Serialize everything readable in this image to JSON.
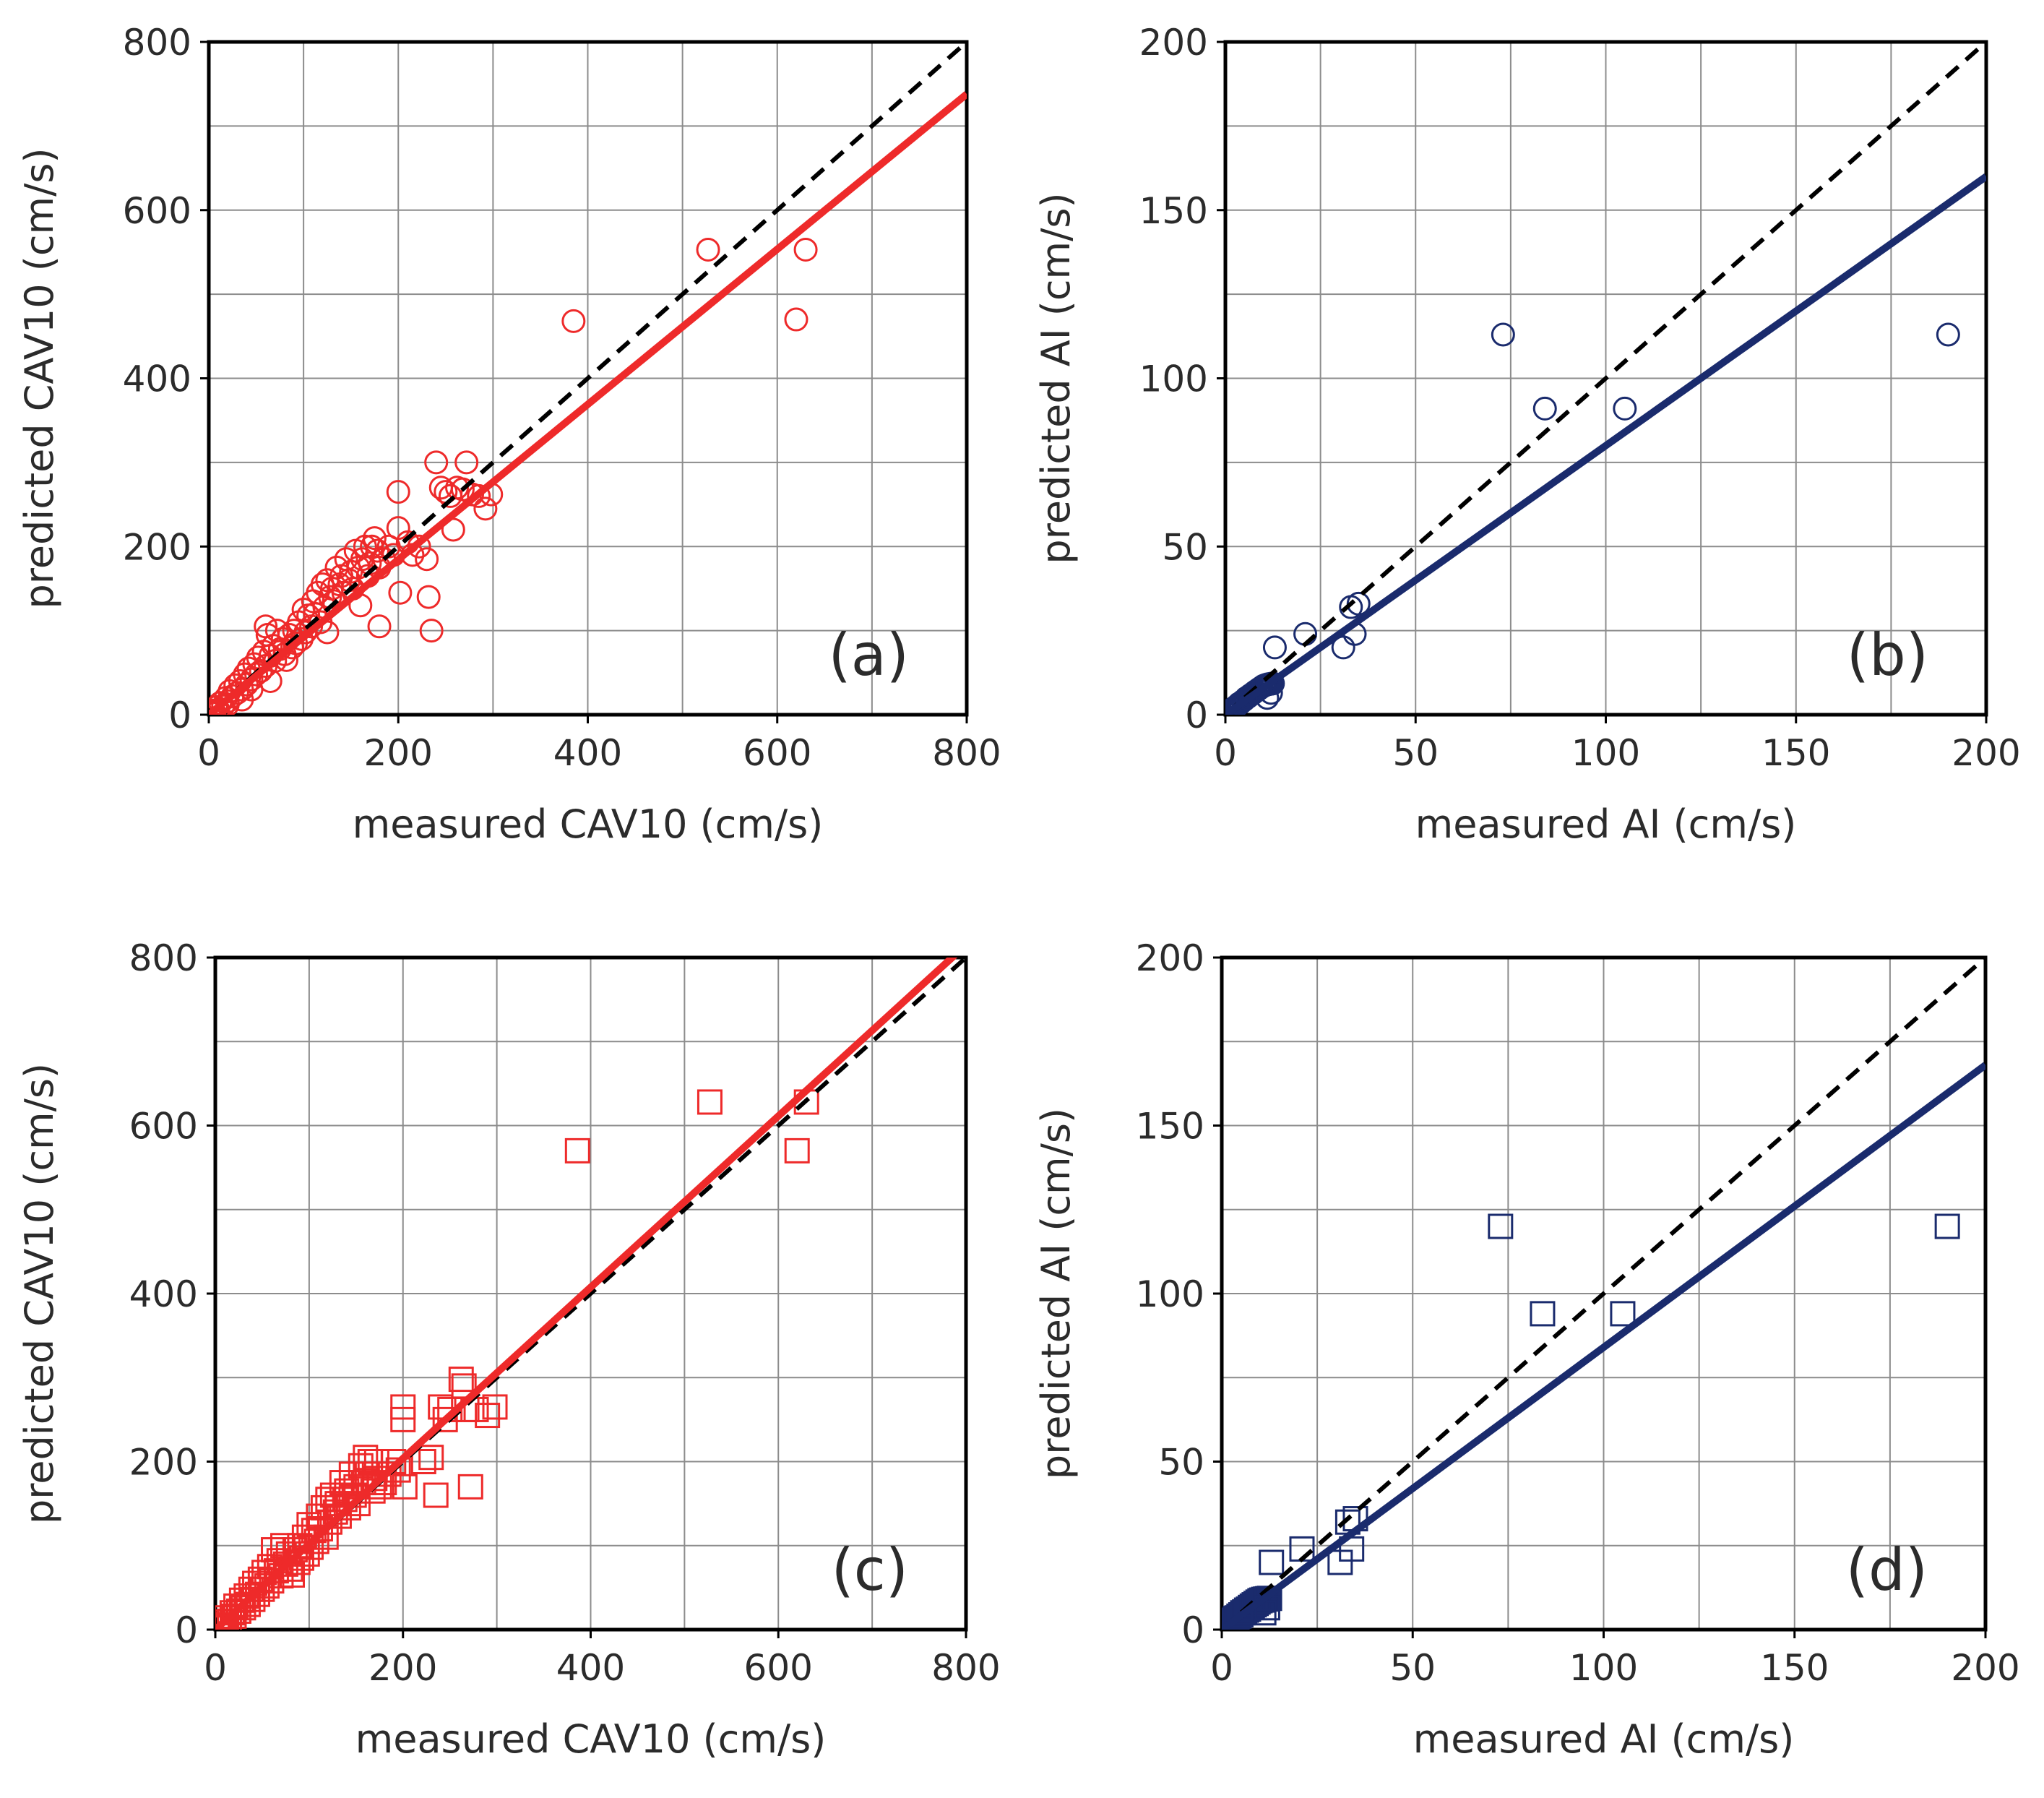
{
  "chart_data": [
    {
      "panel_id": "a",
      "type": "scatter",
      "marker": "circle",
      "color": "#ee2a2a",
      "panel_label": "(a)",
      "xlabel": "measured CAV10 (cm/s)",
      "ylabel": "predicted CAV10 (cm/s)",
      "xlim": [
        0,
        800
      ],
      "ylim": [
        0,
        800
      ],
      "xticks": [
        0,
        200,
        400,
        600,
        800
      ],
      "yticks": [
        0,
        200,
        400,
        600,
        800
      ],
      "xtick_labels": [
        "0",
        "200",
        "400",
        "600",
        "800"
      ],
      "ytick_labels": [
        "0",
        "200",
        "400",
        "600",
        "800"
      ],
      "grid_step": 100,
      "grid": true,
      "identity_line": true,
      "fit_line": {
        "x": [
          0,
          800
        ],
        "y": [
          0,
          738
        ],
        "color": "#ee2a2a"
      },
      "points": [
        [
          2,
          2
        ],
        [
          4,
          5
        ],
        [
          6,
          3
        ],
        [
          8,
          9
        ],
        [
          10,
          6
        ],
        [
          12,
          14
        ],
        [
          15,
          10
        ],
        [
          18,
          20
        ],
        [
          20,
          16
        ],
        [
          22,
          28
        ],
        [
          25,
          22
        ],
        [
          28,
          35
        ],
        [
          30,
          26
        ],
        [
          33,
          40
        ],
        [
          35,
          30
        ],
        [
          38,
          48
        ],
        [
          40,
          36
        ],
        [
          42,
          55
        ],
        [
          45,
          42
        ],
        [
          48,
          60
        ],
        [
          50,
          48
        ],
        [
          52,
          68
        ],
        [
          55,
          52
        ],
        [
          58,
          75
        ],
        [
          60,
          58
        ],
        [
          62,
          95
        ],
        [
          65,
          70
        ],
        [
          68,
          82
        ],
        [
          70,
          64
        ],
        [
          72,
          100
        ],
        [
          75,
          78
        ],
        [
          78,
          90
        ],
        [
          80,
          72
        ],
        [
          82,
          65
        ],
        [
          85,
          95
        ],
        [
          88,
          80
        ],
        [
          90,
          100
        ],
        [
          92,
          85
        ],
        [
          95,
          110
        ],
        [
          98,
          90
        ],
        [
          100,
          125
        ],
        [
          102,
          98
        ],
        [
          105,
          118
        ],
        [
          108,
          105
        ],
        [
          110,
          135
        ],
        [
          112,
          120
        ],
        [
          115,
          145
        ],
        [
          118,
          110
        ],
        [
          120,
          155
        ],
        [
          122,
          128
        ],
        [
          125,
          160
        ],
        [
          128,
          140
        ],
        [
          130,
          150
        ],
        [
          132,
          135
        ],
        [
          135,
          175
        ],
        [
          138,
          155
        ],
        [
          140,
          165
        ],
        [
          142,
          145
        ],
        [
          145,
          185
        ],
        [
          148,
          160
        ],
        [
          150,
          170
        ],
        [
          152,
          150
        ],
        [
          155,
          195
        ],
        [
          158,
          175
        ],
        [
          160,
          130
        ],
        [
          162,
          185
        ],
        [
          165,
          200
        ],
        [
          168,
          165
        ],
        [
          170,
          180
        ],
        [
          172,
          200
        ],
        [
          175,
          210
        ],
        [
          178,
          195
        ],
        [
          180,
          175
        ],
        [
          185,
          185
        ],
        [
          190,
          200
        ],
        [
          195,
          190
        ],
        [
          200,
          265
        ],
        [
          200,
          222
        ],
        [
          202,
          145
        ],
        [
          210,
          205
        ],
        [
          215,
          190
        ],
        [
          222,
          200
        ],
        [
          230,
          185
        ],
        [
          232,
          140
        ],
        [
          235,
          100
        ],
        [
          240,
          300
        ],
        [
          245,
          270
        ],
        [
          250,
          265
        ],
        [
          255,
          260
        ],
        [
          258,
          220
        ],
        [
          262,
          270
        ],
        [
          268,
          268
        ],
        [
          272,
          300
        ],
        [
          278,
          262
        ],
        [
          285,
          260
        ],
        [
          292,
          245
        ],
        [
          298,
          262
        ],
        [
          180,
          105
        ],
        [
          125,
          98
        ],
        [
          60,
          105
        ],
        [
          20,
          12
        ],
        [
          10,
          4
        ],
        [
          45,
          30
        ],
        [
          65,
          40
        ],
        [
          35,
          18
        ],
        [
          385,
          468
        ],
        [
          527,
          553
        ],
        [
          620,
          470
        ],
        [
          630,
          553
        ]
      ]
    },
    {
      "panel_id": "b",
      "type": "scatter",
      "marker": "circle",
      "color": "#1a2b6d",
      "panel_label": "(b)",
      "xlabel": "measured AI (cm/s)",
      "ylabel": "predicted  AI (cm/s)",
      "xlim": [
        0,
        200
      ],
      "ylim": [
        0,
        200
      ],
      "xticks": [
        0,
        50,
        100,
        150,
        200
      ],
      "yticks": [
        0,
        50,
        100,
        150,
        200
      ],
      "xtick_labels": [
        "0",
        "50",
        "100",
        "150",
        "200"
      ],
      "ytick_labels": [
        "0",
        "50",
        "100",
        "150",
        "200"
      ],
      "grid_step": 25,
      "grid": true,
      "identity_line": true,
      "fit_line": {
        "x": [
          0,
          200
        ],
        "y": [
          0,
          160
        ],
        "color": "#1a2b6d"
      },
      "points": [
        [
          0.3,
          0.2
        ],
        [
          0.6,
          0.5
        ],
        [
          1,
          0.8
        ],
        [
          1.3,
          1.1
        ],
        [
          1.6,
          1.2
        ],
        [
          2,
          1.8
        ],
        [
          2.4,
          2
        ],
        [
          2.8,
          2.5
        ],
        [
          3.2,
          2.8
        ],
        [
          3.6,
          3.3
        ],
        [
          4,
          3.5
        ],
        [
          4.5,
          4
        ],
        [
          5,
          4.4
        ],
        [
          5.5,
          5
        ],
        [
          6,
          5.3
        ],
        [
          6.5,
          5.8
        ],
        [
          7,
          6.1
        ],
        [
          7.5,
          6.6
        ],
        [
          8,
          7
        ],
        [
          8.5,
          7.4
        ],
        [
          9,
          7.8
        ],
        [
          9.5,
          8.2
        ],
        [
          10,
          8.6
        ],
        [
          10.5,
          8.8
        ],
        [
          11,
          9
        ],
        [
          11.5,
          9.1
        ],
        [
          12,
          9.2
        ],
        [
          12.5,
          9.3
        ],
        [
          11,
          5
        ],
        [
          12,
          6.5
        ],
        [
          13,
          20
        ],
        [
          21,
          24
        ],
        [
          31,
          20
        ],
        [
          33,
          32
        ],
        [
          34,
          24
        ],
        [
          35,
          33
        ],
        [
          73,
          113
        ],
        [
          84,
          91
        ],
        [
          105,
          91
        ],
        [
          190,
          113
        ]
      ]
    },
    {
      "panel_id": "c",
      "type": "scatter",
      "marker": "square",
      "color": "#ee2a2a",
      "panel_label": "(c)",
      "xlabel": "measured CAV10 (cm/s)",
      "ylabel": "predicted CAV10 (cm/s)",
      "xlim": [
        0,
        800
      ],
      "ylim": [
        0,
        800
      ],
      "xticks": [
        0,
        200,
        400,
        600,
        800
      ],
      "yticks": [
        0,
        200,
        400,
        600,
        800
      ],
      "xtick_labels": [
        "0",
        "200",
        "400",
        "600",
        "800"
      ],
      "ytick_labels": [
        "0",
        "200",
        "400",
        "600",
        "800"
      ],
      "grid_step": 100,
      "grid": true,
      "identity_line": true,
      "fit_line": {
        "x": [
          0,
          800
        ],
        "y": [
          0,
          815
        ],
        "color": "#ee2a2a"
      },
      "points": [
        [
          2,
          2
        ],
        [
          4,
          5
        ],
        [
          6,
          3
        ],
        [
          8,
          9
        ],
        [
          10,
          6
        ],
        [
          12,
          14
        ],
        [
          15,
          10
        ],
        [
          18,
          20
        ],
        [
          20,
          16
        ],
        [
          22,
          28
        ],
        [
          25,
          22
        ],
        [
          28,
          35
        ],
        [
          30,
          26
        ],
        [
          33,
          40
        ],
        [
          35,
          30
        ],
        [
          38,
          48
        ],
        [
          40,
          36
        ],
        [
          42,
          55
        ],
        [
          45,
          42
        ],
        [
          48,
          60
        ],
        [
          50,
          48
        ],
        [
          52,
          68
        ],
        [
          55,
          52
        ],
        [
          58,
          75
        ],
        [
          60,
          58
        ],
        [
          62,
          95
        ],
        [
          65,
          70
        ],
        [
          68,
          82
        ],
        [
          70,
          64
        ],
        [
          72,
          100
        ],
        [
          75,
          78
        ],
        [
          78,
          90
        ],
        [
          80,
          72
        ],
        [
          82,
          65
        ],
        [
          85,
          95
        ],
        [
          88,
          80
        ],
        [
          90,
          100
        ],
        [
          92,
          85
        ],
        [
          95,
          110
        ],
        [
          98,
          90
        ],
        [
          100,
          125
        ],
        [
          102,
          98
        ],
        [
          105,
          118
        ],
        [
          108,
          105
        ],
        [
          110,
          135
        ],
        [
          112,
          120
        ],
        [
          115,
          145
        ],
        [
          118,
          110
        ],
        [
          120,
          155
        ],
        [
          122,
          128
        ],
        [
          125,
          160
        ],
        [
          128,
          140
        ],
        [
          130,
          150
        ],
        [
          132,
          135
        ],
        [
          135,
          175
        ],
        [
          138,
          155
        ],
        [
          140,
          165
        ],
        [
          142,
          145
        ],
        [
          145,
          185
        ],
        [
          148,
          160
        ],
        [
          150,
          170
        ],
        [
          152,
          150
        ],
        [
          155,
          195
        ],
        [
          158,
          175
        ],
        [
          160,
          205
        ],
        [
          162,
          185
        ],
        [
          165,
          200
        ],
        [
          168,
          165
        ],
        [
          170,
          180
        ],
        [
          172,
          200
        ],
        [
          175,
          170
        ],
        [
          180,
          175
        ],
        [
          185,
          185
        ],
        [
          190,
          200
        ],
        [
          195,
          190
        ],
        [
          200,
          265
        ],
        [
          200,
          250
        ],
        [
          202,
          170
        ],
        [
          222,
          200
        ],
        [
          230,
          205
        ],
        [
          235,
          160
        ],
        [
          240,
          265
        ],
        [
          245,
          250
        ],
        [
          250,
          262
        ],
        [
          262,
          298
        ],
        [
          265,
          290
        ],
        [
          268,
          262
        ],
        [
          272,
          170
        ],
        [
          278,
          262
        ],
        [
          290,
          255
        ],
        [
          298,
          265
        ],
        [
          5,
          2
        ],
        [
          8,
          4
        ],
        [
          12,
          3
        ],
        [
          386,
          570
        ],
        [
          527,
          628
        ],
        [
          620,
          570
        ],
        [
          630,
          628
        ]
      ]
    },
    {
      "panel_id": "d",
      "type": "scatter",
      "marker": "square",
      "color": "#1a2b6d",
      "panel_label": "(d)",
      "xlabel": "measured AI (cm/s)",
      "ylabel": "predicted  AI (cm/s)",
      "xlim": [
        0,
        200
      ],
      "ylim": [
        0,
        200
      ],
      "xticks": [
        0,
        50,
        100,
        150,
        200
      ],
      "yticks": [
        0,
        50,
        100,
        150,
        200
      ],
      "xtick_labels": [
        "0",
        "50",
        "100",
        "150",
        "200"
      ],
      "ytick_labels": [
        "0",
        "50",
        "100",
        "150",
        "200"
      ],
      "grid_step": 25,
      "grid": true,
      "identity_line": true,
      "fit_line": {
        "x": [
          0,
          200
        ],
        "y": [
          0,
          168
        ],
        "color": "#1a2b6d"
      },
      "points": [
        [
          0.3,
          0.2
        ],
        [
          0.6,
          0.5
        ],
        [
          1,
          0.8
        ],
        [
          1.3,
          1.1
        ],
        [
          1.6,
          1.2
        ],
        [
          2,
          1.8
        ],
        [
          2.4,
          2
        ],
        [
          2.8,
          2.5
        ],
        [
          3.2,
          2.8
        ],
        [
          3.6,
          3.3
        ],
        [
          4,
          3.5
        ],
        [
          4.5,
          4
        ],
        [
          5,
          4.4
        ],
        [
          5.5,
          5
        ],
        [
          6,
          5.3
        ],
        [
          6.5,
          5.8
        ],
        [
          7,
          6.1
        ],
        [
          7.5,
          6.6
        ],
        [
          8,
          7
        ],
        [
          8.5,
          7.4
        ],
        [
          9,
          7.8
        ],
        [
          9.5,
          8.2
        ],
        [
          10,
          8.6
        ],
        [
          10.5,
          8.8
        ],
        [
          11,
          9
        ],
        [
          11.5,
          9.1
        ],
        [
          12,
          9.2
        ],
        [
          12.5,
          9.3
        ],
        [
          11,
          5
        ],
        [
          12,
          6.5
        ],
        [
          13,
          20
        ],
        [
          21,
          24
        ],
        [
          31,
          20
        ],
        [
          33,
          32
        ],
        [
          34,
          24
        ],
        [
          35,
          33
        ],
        [
          73,
          120
        ],
        [
          84,
          94
        ],
        [
          105,
          94
        ],
        [
          190,
          120
        ]
      ]
    }
  ]
}
